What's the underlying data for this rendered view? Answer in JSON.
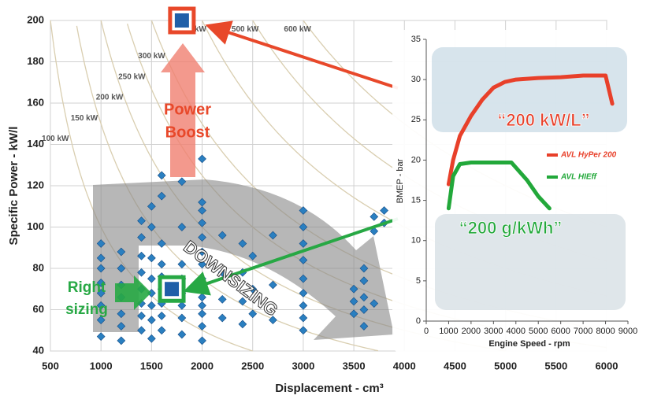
{
  "chart_data": [
    {
      "type": "scatter",
      "x_label": "Displacement   - cm³",
      "y_label": "Specific Power  - kW/l",
      "xlim": [
        500,
        6000
      ],
      "xticks": [
        500,
        1000,
        1500,
        2000,
        2500,
        3000,
        3500,
        4000,
        4500,
        5000,
        5500,
        6000
      ],
      "ylim": [
        40,
        200
      ],
      "yticks": [
        40,
        60,
        80,
        100,
        120,
        140,
        160,
        180,
        200
      ],
      "grid": true,
      "color": "#2a7fc0",
      "x": [
        1000,
        1000,
        1000,
        1000,
        1000,
        1000,
        1000,
        1000,
        1200,
        1200,
        1200,
        1200,
        1200,
        1200,
        1200,
        1400,
        1400,
        1400,
        1400,
        1400,
        1400,
        1400,
        1400,
        1500,
        1500,
        1500,
        1500,
        1500,
        1500,
        1500,
        1500,
        1600,
        1600,
        1600,
        1600,
        1600,
        1600,
        1600,
        1600,
        1600,
        1800,
        1800,
        1800,
        1800,
        1800,
        1800,
        1800,
        1800,
        2000,
        2000,
        2000,
        2000,
        2000,
        2000,
        2000,
        2000,
        2000,
        2000,
        2000,
        2000,
        2000,
        2000,
        2200,
        2200,
        2200,
        2200,
        2400,
        2400,
        2400,
        2400,
        2500,
        2500,
        2500,
        2700,
        2700,
        2700,
        3000,
        3000,
        3000,
        3000,
        3000,
        3000,
        3000,
        3000,
        3000,
        3500,
        3500,
        3500,
        3600,
        3600,
        3600,
        3600,
        3600,
        3700,
        3700,
        3700,
        3800,
        3800
      ],
      "values": [
        47,
        55,
        62,
        68,
        73,
        80,
        85,
        92,
        45,
        52,
        58,
        66,
        72,
        80,
        88,
        50,
        57,
        63,
        70,
        78,
        86,
        95,
        103,
        46,
        55,
        62,
        68,
        75,
        85,
        100,
        110,
        50,
        57,
        63,
        70,
        76,
        82,
        92,
        115,
        125,
        48,
        56,
        62,
        68,
        75,
        82,
        100,
        122,
        45,
        52,
        58,
        62,
        66,
        70,
        75,
        82,
        88,
        95,
        102,
        108,
        112,
        133,
        56,
        65,
        78,
        96,
        53,
        64,
        78,
        92,
        58,
        70,
        86,
        55,
        72,
        96,
        50,
        56,
        62,
        68,
        75,
        84,
        92,
        100,
        108,
        58,
        64,
        70,
        52,
        60,
        66,
        74,
        80,
        63,
        98,
        105,
        102,
        108
      ],
      "highlight_points": {
        "x": [
          1800,
          1700
        ],
        "values": [
          200,
          70
        ],
        "colors": [
          "#e8482a",
          "#27a844"
        ]
      },
      "power_lines": [
        {
          "value": 100,
          "label": "100 kW"
        },
        {
          "value": 150,
          "label": "150 kW"
        },
        {
          "value": 200,
          "label": "200 kW"
        },
        {
          "value": 250,
          "label": "250 kW"
        },
        {
          "value": 300,
          "label": "300 kW"
        },
        {
          "value": 400,
          "label": "400 kW"
        },
        {
          "value": 500,
          "label": "500 kW"
        },
        {
          "value": 600,
          "label": "600 kW"
        }
      ],
      "annotations": {
        "power_boost": [
          "Power",
          "Boost"
        ],
        "right_sizing": [
          "Right",
          "sizing"
        ],
        "downsizing": "DOWNSIZING"
      }
    },
    {
      "type": "line",
      "x_label": "Engine Speed - rpm",
      "y_label": "BMEP - bar",
      "xlim": [
        0,
        9000
      ],
      "xticks": [
        0,
        1000,
        2000,
        3000,
        4000,
        5000,
        6000,
        7000,
        8000,
        9000
      ],
      "ylim": [
        0,
        35
      ],
      "yticks": [
        0,
        5,
        10,
        15,
        20,
        25,
        30,
        35
      ],
      "grid": false,
      "series": [
        {
          "name": "AVL HyPer 200",
          "color": "#e8402a",
          "x": [
            1000,
            1200,
            1500,
            2000,
            2500,
            3000,
            3500,
            4000,
            5000,
            6000,
            7000,
            8000,
            8300
          ],
          "values": [
            17,
            20,
            23,
            25.5,
            27.5,
            29,
            29.7,
            30,
            30.2,
            30.3,
            30.5,
            30.5,
            27
          ]
        },
        {
          "name": "AVL HIEff",
          "color": "#22a83a",
          "x": [
            1000,
            1200,
            1500,
            2000,
            3000,
            3800,
            4500,
            5000,
            5500
          ],
          "values": [
            14,
            18,
            19.5,
            19.7,
            19.7,
            19.7,
            17.5,
            15.5,
            14
          ]
        }
      ],
      "annotations": {
        "top": "“200 kW/L”",
        "bottom": "“200 g/kWh”"
      }
    }
  ]
}
